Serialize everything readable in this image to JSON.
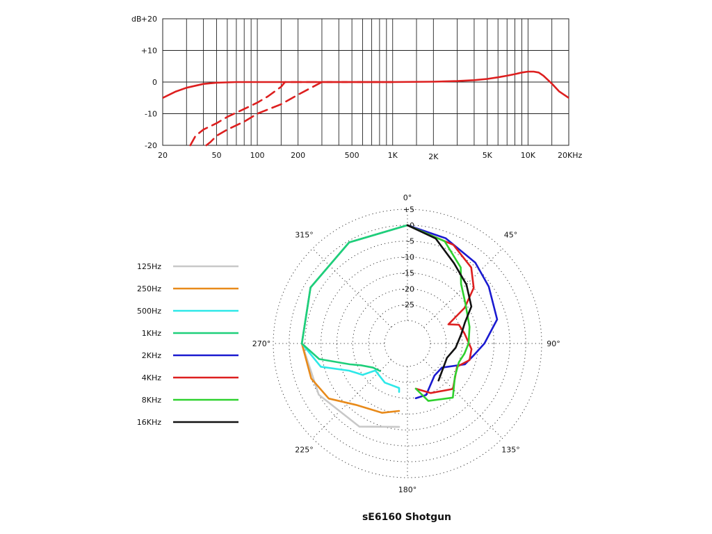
{
  "title": "sE6160  Shotgun",
  "chart_data": [
    {
      "type": "line",
      "xscale": "log",
      "xlim": [
        20,
        20000
      ],
      "ylim": [
        -20,
        20
      ],
      "grid": true,
      "ylabel": "dB",
      "y_ticks": [
        {
          "value": 20,
          "label": "+20"
        },
        {
          "value": 10,
          "label": "+10"
        },
        {
          "value": 0,
          "label": "0"
        },
        {
          "value": -10,
          "label": "-10"
        },
        {
          "value": -20,
          "label": "-20"
        }
      ],
      "x_ticks": [
        {
          "value": 20,
          "label": "20"
        },
        {
          "value": 50,
          "label": "50"
        },
        {
          "value": 100,
          "label": "100"
        },
        {
          "value": 200,
          "label": "200"
        },
        {
          "value": 500,
          "label": "500"
        },
        {
          "value": 1000,
          "label": "1K"
        },
        {
          "value": 2000,
          "label": "2K"
        },
        {
          "value": 5000,
          "label": "5K"
        },
        {
          "value": 10000,
          "label": "10K"
        },
        {
          "value": 20000,
          "label": "20KHz"
        }
      ],
      "x_gridlines": [
        20,
        30,
        40,
        50,
        60,
        70,
        80,
        90,
        100,
        150,
        200,
        300,
        400,
        500,
        600,
        700,
        800,
        900,
        1000,
        1500,
        2000,
        3000,
        4000,
        5000,
        6000,
        7000,
        8000,
        9000,
        10000,
        15000,
        20000
      ],
      "series": [
        {
          "style": "solid",
          "color": "#dd1f1f",
          "points": [
            [
              20,
              -5
            ],
            [
              25,
              -3
            ],
            [
              30,
              -1.8
            ],
            [
              40,
              -0.6
            ],
            [
              50,
              -0.2
            ],
            [
              70,
              0
            ],
            [
              100,
              0
            ],
            [
              1000,
              0
            ],
            [
              2000,
              0.1
            ],
            [
              3000,
              0.3
            ],
            [
              4000,
              0.6
            ],
            [
              5000,
              1
            ],
            [
              6000,
              1.5
            ],
            [
              7000,
              2
            ],
            [
              8000,
              2.5
            ],
            [
              9000,
              3
            ],
            [
              10000,
              3.3
            ],
            [
              11000,
              3.3
            ],
            [
              12000,
              3
            ],
            [
              13000,
              2
            ],
            [
              15000,
              -0.5
            ],
            [
              17000,
              -3
            ],
            [
              20000,
              -5
            ]
          ]
        },
        {
          "style": "dashed",
          "color": "#dd1f1f",
          "points": [
            [
              32,
              -20
            ],
            [
              35,
              -17
            ],
            [
              40,
              -15
            ],
            [
              50,
              -13
            ],
            [
              60,
              -11
            ],
            [
              80,
              -8.5
            ],
            [
              100,
              -6.5
            ],
            [
              120,
              -4.5
            ],
            [
              150,
              -1.5
            ],
            [
              160,
              0
            ],
            [
              200,
              0
            ],
            [
              1000,
              0
            ]
          ]
        },
        {
          "style": "dashed",
          "color": "#dd1f1f",
          "points": [
            [
              42,
              -20
            ],
            [
              45,
              -19
            ],
            [
              50,
              -17
            ],
            [
              60,
              -15
            ],
            [
              80,
              -12.5
            ],
            [
              100,
              -10
            ],
            [
              150,
              -7
            ],
            [
              200,
              -4
            ],
            [
              300,
              0
            ],
            [
              1000,
              0
            ]
          ]
        }
      ]
    },
    {
      "type": "polar",
      "rlim": [
        -30,
        5
      ],
      "ring_labels": [
        "+5",
        "0",
        "-5",
        "-10",
        "-15",
        "-20",
        "-25"
      ],
      "ring_values": [
        5,
        0,
        -5,
        -10,
        -15,
        -20,
        -25,
        -30
      ],
      "angle_labels": [
        {
          "deg": 0,
          "label": "0°"
        },
        {
          "deg": 45,
          "label": "45°"
        },
        {
          "deg": 90,
          "label": "90°"
        },
        {
          "deg": 135,
          "label": "135°"
        },
        {
          "deg": 180,
          "label": "180°"
        },
        {
          "deg": 225,
          "label": "225°"
        },
        {
          "deg": 270,
          "label": "270°"
        },
        {
          "deg": 315,
          "label": "315°"
        }
      ],
      "series": [
        {
          "name": "125Hz",
          "color": "#c8c8c8",
          "side": "left",
          "points": [
            [
              0,
              0
            ],
            [
              30,
              -0.5
            ],
            [
              60,
              -2
            ],
            [
              90,
              -4
            ],
            [
              120,
              -5
            ],
            [
              150,
              -7
            ],
            [
              180,
              -11
            ]
          ]
        },
        {
          "name": "250Hz",
          "color": "#e88a1a",
          "side": "left",
          "points": [
            [
              0,
              0
            ],
            [
              30,
              -0.5
            ],
            [
              60,
              -2
            ],
            [
              90,
              -4
            ],
            [
              110,
              -5
            ],
            [
              125,
              -7
            ],
            [
              140,
              -12
            ],
            [
              160,
              -14
            ],
            [
              180,
              -16
            ]
          ]
        },
        {
          "name": "500Hz",
          "color": "#2de8e8",
          "side": "left",
          "points": [
            [
              0,
              0
            ],
            [
              30,
              -0.5
            ],
            [
              60,
              -2
            ],
            [
              90,
              -4
            ],
            [
              105,
              -9
            ],
            [
              115,
              -17
            ],
            [
              125,
              -20
            ],
            [
              130,
              -24
            ],
            [
              150,
              -23
            ],
            [
              170,
              -23
            ],
            [
              180,
              -22
            ]
          ]
        },
        {
          "name": "1KHz",
          "color": "#1ecf7a",
          "side": "left",
          "points": [
            [
              0,
              0
            ],
            [
              30,
              -0.5
            ],
            [
              60,
              -2
            ],
            [
              90,
              -4
            ],
            [
              100,
              -9
            ],
            [
              110,
              -18
            ],
            [
              115,
              -21
            ],
            [
              125,
              -24
            ],
            [
              135,
              -25
            ]
          ]
        },
        {
          "name": "2KHz",
          "color": "#1a1ad0",
          "side": "right",
          "points": [
            [
              0,
              0
            ],
            [
              20,
              -2
            ],
            [
              40,
              -4
            ],
            [
              55,
              -6
            ],
            [
              75,
              -8
            ],
            [
              90,
              -13
            ],
            [
              100,
              -16
            ],
            [
              110,
              -18
            ],
            [
              125,
              -24
            ],
            [
              140,
              -24
            ],
            [
              160,
              -20
            ],
            [
              180,
              -20
            ]
          ]
        },
        {
          "name": "4KHz",
          "color": "#dd1f1f",
          "side": "right",
          "points": [
            [
              0,
              0
            ],
            [
              25,
              -3
            ],
            [
              40,
              -6
            ],
            [
              50,
              -10
            ],
            [
              58,
              -16
            ],
            [
              65,
              -23
            ],
            [
              70,
              -20
            ],
            [
              80,
              -19
            ],
            [
              95,
              -17
            ],
            [
              105,
              -17
            ],
            [
              115,
              -20
            ],
            [
              135,
              -17
            ],
            [
              155,
              -20
            ],
            [
              180,
              -23
            ]
          ]
        },
        {
          "name": "8KHz",
          "color": "#2ed12e",
          "side": "right",
          "points": [
            [
              0,
              0
            ],
            [
              20,
              -3
            ],
            [
              35,
              -8
            ],
            [
              42,
              -12
            ],
            [
              55,
              -15
            ],
            [
              75,
              -17
            ],
            [
              90,
              -18
            ],
            [
              100,
              -19
            ],
            [
              110,
              -20
            ],
            [
              125,
              -19
            ],
            [
              140,
              -15
            ],
            [
              160,
              -18
            ],
            [
              180,
              -23
            ]
          ]
        },
        {
          "name": "16KHz",
          "color": "#111111",
          "side": "right",
          "points": [
            [
              0,
              0
            ],
            [
              15,
              -3
            ],
            [
              30,
              -8
            ],
            [
              45,
              -11
            ],
            [
              60,
              -14
            ],
            [
              70,
              -18
            ],
            [
              80,
              -20
            ],
            [
              95,
              -22
            ],
            [
              110,
              -24
            ],
            [
              140,
              -22
            ]
          ]
        }
      ]
    }
  ]
}
